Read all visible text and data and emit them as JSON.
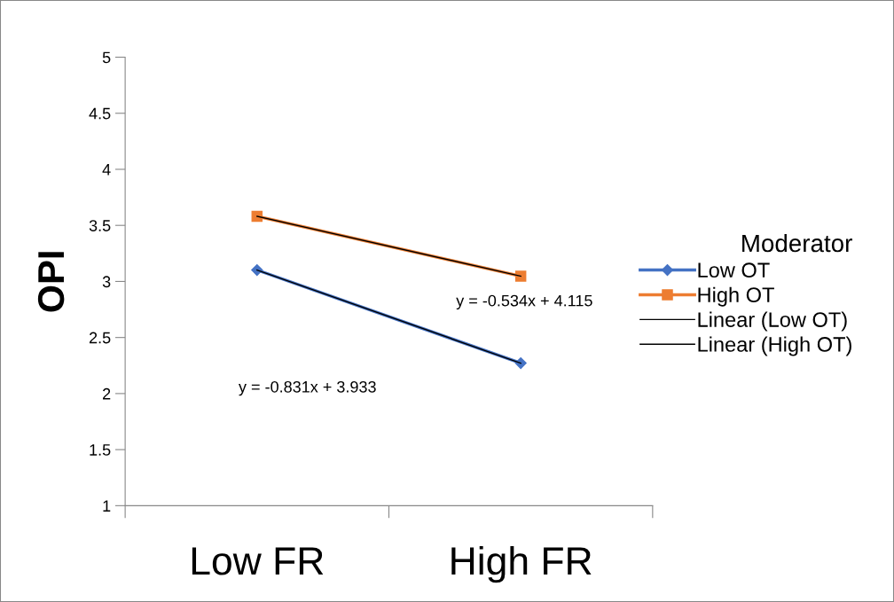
{
  "chart_data": {
    "type": "line",
    "ylabel": "OPI",
    "legend_title": "Moderator",
    "legend": "right",
    "categories": [
      "Low FR",
      "High FR"
    ],
    "series": [
      {
        "name": "Low OT",
        "color": "#4472c4",
        "values": [
          3.102,
          2.271
        ],
        "marker": "diamond"
      },
      {
        "name": "High OT",
        "color": "#ed7d31",
        "values": [
          3.581,
          3.047
        ],
        "marker": "square"
      },
      {
        "name": "Linear (Low OT)",
        "color": "#000000",
        "values": [
          3.102,
          2.271
        ],
        "marker": "none"
      },
      {
        "name": "Linear (High OT)",
        "color": "#000000",
        "values": [
          3.581,
          3.047
        ],
        "marker": "none"
      }
    ],
    "ylim": [
      1,
      5
    ],
    "yticks": [
      1,
      1.5,
      2,
      2.5,
      3,
      3.5,
      4,
      4.5,
      5
    ],
    "grid": false,
    "annotations": [
      "y = -0.831x + 3.933",
      "y = -0.534x + 4.115"
    ]
  }
}
